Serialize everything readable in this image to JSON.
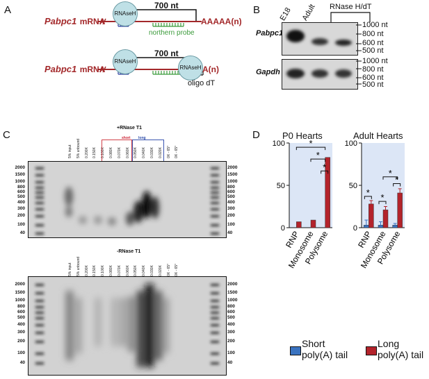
{
  "panel_a": {
    "letter": "A",
    "row1": {
      "gene": "Pabpc1",
      "mrna_label": "mRNA",
      "enzyme": "RNAseH",
      "length": "700 nt",
      "tail": "AAAAA(n)",
      "probe": "northern probe"
    },
    "row2": {
      "gene": "Pabpc1",
      "mrna_label": "mRNA",
      "enzyme1": "RNAseH",
      "length": "700 nt",
      "enzyme2": "RNAseH",
      "tail": "A(n)",
      "oligo": "oligo dT"
    }
  },
  "panel_b": {
    "letter": "B",
    "lanes": [
      "E18",
      "Adult"
    ],
    "group_label": "RNase H/dT",
    "blot1_gene": "Pabpc1",
    "blot2_gene": "Gapdh",
    "markers": [
      "1000 nt",
      "800 nt",
      "600 nt",
      "500 nt"
    ]
  },
  "panel_c": {
    "letter": "C",
    "gel1_title": "+RNase T1",
    "gel2_title": "-RNase T1",
    "short_label": "short",
    "long_label": "long",
    "lanes": [
      "5% input",
      "5% unbound",
      "0.200X",
      "0.150X",
      "0.100X",
      "0.080X",
      "0.070X",
      "0.060X",
      "0.050X",
      "0.040X",
      "0.030X",
      "0.020X",
      "0X - 65°",
      "0X - 65°"
    ],
    "ladder": [
      "2000",
      "1500",
      "1000",
      "800",
      "600",
      "500",
      "400",
      "300",
      "200",
      "100",
      "40"
    ]
  },
  "panel_d": {
    "letter": "D",
    "chart_data": [
      {
        "type": "bar",
        "title": "P0 Hearts",
        "categories": [
          "RNP",
          "Monosome",
          "Polysome"
        ],
        "series": [
          {
            "name": "Short poly(A) tail",
            "values": [
              0,
              0,
              0
            ],
            "color": "#3a73c0"
          },
          {
            "name": "Long poly(A) tail",
            "values": [
              7,
              9,
              83
            ],
            "color": "#b3232b"
          }
        ],
        "ylim": [
          0,
          100
        ],
        "yticks": [
          "0",
          "50",
          "100"
        ],
        "significance": [
          "*",
          "*",
          "*"
        ]
      },
      {
        "type": "bar",
        "title": "Adult Hearts",
        "categories": [
          "RNP",
          "Monosome",
          "Polysome"
        ],
        "series": [
          {
            "name": "Short poly(A) tail",
            "values": [
              3,
              3,
              3
            ],
            "errors": [
              6,
              4,
              2
            ],
            "color": "#3a73c0"
          },
          {
            "name": "Long poly(A) tail",
            "values": [
              28,
              21,
              41
            ],
            "errors": [
              4,
              4,
              5
            ],
            "color": "#b3232b"
          }
        ],
        "ylim": [
          0,
          100
        ],
        "yticks": [
          "0",
          "50",
          "100"
        ],
        "significance": [
          "*",
          "*",
          "*",
          "*"
        ]
      }
    ],
    "legend": [
      {
        "line1": "Short",
        "line2": "poly(A) tail",
        "color": "#3a73c0"
      },
      {
        "line1": "Long",
        "line2": "poly(A) tail",
        "color": "#b3232b"
      }
    ]
  }
}
